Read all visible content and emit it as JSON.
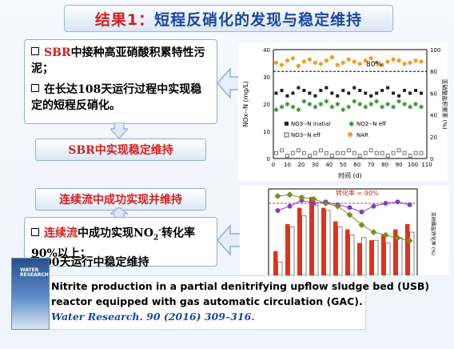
{
  "title": {
    "prefix": "结果1：",
    "text": "短程反硝化的发现与稳定维持"
  },
  "box1": {
    "b1_red": "SBR",
    "b1_text": "中接种高亚硝酸积累特性污泥；",
    "b2_text": "在长达108天运行过程中实现稳定的短程反硝化。"
  },
  "pill1": "SBR中实现稳定维持",
  "pill2": "连续流中成功实现并维持",
  "box2": {
    "b1_red": "连续流",
    "b1_mid": "中成功实现NO",
    "b1_sub": "2",
    "b1_sup": "-",
    "b1_end": "转化率90%以上；",
    "b2_text": "00天运行中稳定维持"
  },
  "paper": {
    "line1": "Nitrite production in a partial denitrifying upflow sludge bed (USB)",
    "line2": "reactor equipped with gas automatic circulation (GAC).",
    "journal": "Water Research. 90 (2016) 309–316.",
    "cover_title": "WATER RESEARCH"
  },
  "chart_data": [
    {
      "type": "scatter",
      "xlabel": "时间 (d)",
      "ylabel": "NOx--N (mg/L)",
      "y2label": "亚硝酸盐积累率 (%)",
      "xlim": [
        0,
        110
      ],
      "ylim": [
        0,
        40
      ],
      "y2lim": [
        0,
        100
      ],
      "xticks": [
        0,
        10,
        20,
        30,
        40,
        50,
        60,
        70,
        80,
        90,
        100,
        110
      ],
      "yticks": [
        0,
        10,
        20,
        30,
        40
      ],
      "y2ticks": [
        0,
        20,
        40,
        60,
        80,
        100
      ],
      "annotation": "80%",
      "legend": [
        "NO3--N inatial",
        "NO2--N eff",
        "NO3--N eff",
        "NAR"
      ],
      "series": [
        {
          "name": "NO3--N inatial",
          "x": [
            2,
            6,
            10,
            14,
            18,
            22,
            26,
            30,
            34,
            38,
            42,
            46,
            50,
            54,
            58,
            62,
            66,
            70,
            74,
            78,
            82,
            86,
            90,
            94,
            98,
            102,
            106
          ],
          "y": [
            24,
            25,
            23,
            24,
            26,
            25,
            24,
            23,
            25,
            26,
            24,
            23,
            25,
            24,
            26,
            25,
            24,
            23,
            24,
            25,
            26,
            24,
            23,
            25,
            24,
            25,
            24
          ]
        },
        {
          "name": "NO2--N eff",
          "x": [
            2,
            6,
            10,
            14,
            18,
            22,
            26,
            30,
            34,
            38,
            42,
            46,
            50,
            54,
            58,
            62,
            66,
            70,
            74,
            78,
            82,
            86,
            90,
            94,
            98,
            102,
            106
          ],
          "y": [
            18,
            19,
            20,
            19,
            18,
            21,
            20,
            19,
            20,
            21,
            19,
            20,
            18,
            19,
            21,
            20,
            19,
            20,
            21,
            19,
            20,
            19,
            21,
            20,
            19,
            20,
            19
          ]
        },
        {
          "name": "NO3--N eff",
          "x": [
            2,
            6,
            10,
            14,
            18,
            22,
            26,
            30,
            34,
            38,
            42,
            46,
            50,
            54,
            58,
            62,
            66,
            70,
            74,
            78,
            82,
            86,
            90,
            94,
            98,
            102,
            106
          ],
          "y": [
            2,
            3,
            1,
            2,
            3,
            2,
            1,
            2,
            3,
            2,
            1,
            2,
            2,
            3,
            2,
            1,
            2,
            3,
            2,
            2,
            1,
            2,
            3,
            2,
            1,
            2,
            2
          ]
        },
        {
          "name": "NAR",
          "x": [
            2,
            6,
            10,
            14,
            18,
            22,
            26,
            30,
            34,
            38,
            42,
            46,
            50,
            54,
            58,
            62,
            66,
            70,
            74,
            78,
            82,
            86,
            90,
            94,
            98,
            102,
            106
          ],
          "y": [
            88,
            86,
            90,
            92,
            85,
            89,
            91,
            88,
            87,
            90,
            93,
            86,
            88,
            91,
            89,
            87,
            90,
            92,
            88,
            86,
            89,
            91,
            90,
            87,
            88,
            90,
            89
          ]
        }
      ]
    },
    {
      "type": "bar",
      "annotation": "转化率 = 90%",
      "ylabel": "亚硝酸盐转化率 (%)",
      "series": [
        {
          "name": "red",
          "values": [
            0.09,
            0.19,
            0.25,
            0.29,
            0.25,
            0.2,
            0.17,
            0.12,
            0.13,
            0.15,
            0.17,
            0.19
          ]
        },
        {
          "name": "pattern",
          "values": [
            0.05,
            0.18,
            0.22,
            0.26,
            0.24,
            0.18,
            0.15,
            0.14,
            0.13,
            0.12,
            0.14,
            0.16
          ]
        },
        {
          "name": "conversion",
          "values": [
            85,
            88,
            92,
            90,
            91,
            89,
            87,
            84,
            88,
            90,
            91,
            89
          ]
        },
        {
          "name": "green",
          "values": [
            95,
            96,
            94,
            93,
            90,
            88,
            82,
            75,
            70,
            68,
            66,
            64
          ]
        }
      ]
    }
  ]
}
